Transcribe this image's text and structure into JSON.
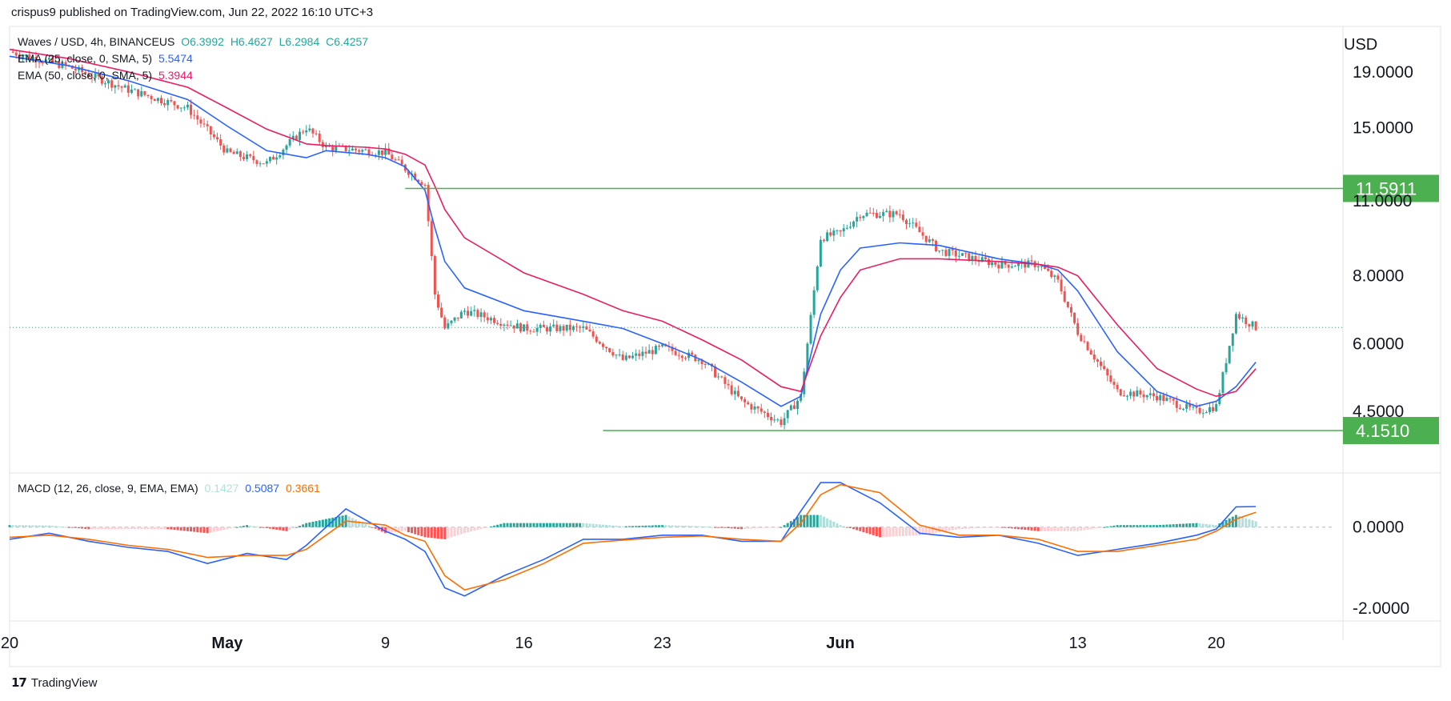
{
  "header": "crispus9 published on TradingView.com, Jun 22, 2022 16:10 UTC+3",
  "footer": {
    "brand": "TradingView",
    "logo_icon": "tradingview-logo-icon"
  },
  "legend": {
    "main": {
      "title": "Waves / USD, 4h, BINANCEUS",
      "O": "O6.3992",
      "H": "H6.4627",
      "L": "L6.2984",
      "C": "C6.4257"
    },
    "ema25": {
      "label": "EMA (25, close, 0, SMA, 5)",
      "value": "5.5474"
    },
    "ema50": {
      "label": "EMA (50, close, 0, SMA, 5)",
      "value": "5.3944"
    },
    "macd": {
      "label": "MACD (12, 26, close, 9, EMA, EMA)",
      "hist": "0.1427",
      "macd": "0.5087",
      "signal": "0.3661"
    }
  },
  "colors": {
    "up": "#26a69a",
    "down": "#ef5350",
    "ema25": "#2962ff",
    "ema50": "#e91e63",
    "level": "#4caf50",
    "macd": "#2962ff",
    "signal": "#ff6d00",
    "hist_up": "#26a69a",
    "hist_up_weak": "#b2dfdb",
    "hist_down": "#ff5252",
    "hist_down_weak": "#ffcdd2"
  },
  "chart_data": [
    {
      "type": "candlestick",
      "title": "Waves / USD, 4h, BINANCEUS",
      "ylabel": "USD",
      "y_scale": "log",
      "ylim": [
        3.6,
        22.5
      ],
      "y_ticks": [
        "19.0000",
        "15.0000",
        "11.0000",
        "8.0000",
        "6.0000",
        "4.5000"
      ],
      "x_ticks": [
        "20",
        "May",
        "9",
        "16",
        "23",
        "Jun",
        "13",
        "20"
      ],
      "x_tick_dates": [
        "2022-04-20",
        "2022-05-01",
        "2022-05-09",
        "2022-05-16",
        "2022-05-23",
        "2022-06-01",
        "2022-06-13",
        "2022-06-20"
      ],
      "xlim": [
        "2022-04-20",
        "2022-06-26"
      ],
      "current_price": 6.4257,
      "horizontal_levels": [
        {
          "value": 11.5911,
          "label": "11.5911",
          "from": "2022-05-10"
        },
        {
          "value": 4.151,
          "label": "4.1510",
          "from": "2022-05-20"
        }
      ],
      "ohlc_anchor_x": [
        "2022-04-20",
        "2022-04-23",
        "2022-04-26",
        "2022-04-29",
        "2022-05-01",
        "2022-05-03",
        "2022-05-05",
        "2022-05-06",
        "2022-05-08",
        "2022-05-09",
        "2022-05-10",
        "2022-05-11",
        "2022-05-11 12:00",
        "2022-05-12",
        "2022-05-13",
        "2022-05-16",
        "2022-05-19",
        "2022-05-21",
        "2022-05-23",
        "2022-05-25",
        "2022-05-27",
        "2022-05-29",
        "2022-05-30",
        "2022-05-31",
        "2022-06-01",
        "2022-06-02",
        "2022-06-04",
        "2022-06-06",
        "2022-06-09",
        "2022-06-11",
        "2022-06-12",
        "2022-06-13",
        "2022-06-15",
        "2022-06-17",
        "2022-06-19",
        "2022-06-20",
        "2022-06-21",
        "2022-06-22"
      ],
      "ohlc_anchor_y": [
        20.7,
        19.4,
        17.6,
        16.3,
        13.5,
        12.9,
        15.0,
        13.8,
        13.6,
        13.5,
        12.6,
        11.8,
        7.4,
        6.4,
        6.9,
        6.4,
        6.4,
        5.6,
        5.9,
        5.6,
        4.7,
        4.3,
        4.8,
        9.4,
        9.6,
        10.4,
        10.4,
        8.9,
        8.4,
        8.4,
        7.8,
        6.3,
        4.9,
        4.8,
        4.5,
        4.6,
        6.8,
        6.4257
      ],
      "series": [
        {
          "name": "EMA (25, close, 0, SMA, 5)",
          "values": [
            20.3,
            19.5,
            18.3,
            16.9,
            15.1,
            13.6,
            13.2,
            13.6,
            13.4,
            13.2,
            12.7,
            11.5,
            9.8,
            8.5,
            7.6,
            6.9,
            6.6,
            6.4,
            6.0,
            5.6,
            5.1,
            4.6,
            4.8,
            6.8,
            8.2,
            9.0,
            9.2,
            9.1,
            8.6,
            8.4,
            8.2,
            7.5,
            5.8,
            4.9,
            4.6,
            4.7,
            5.0,
            5.5474
          ]
        },
        {
          "name": "EMA (50, close, 0, SMA, 5)",
          "values": [
            20.9,
            20.1,
            19.0,
            17.8,
            16.3,
            14.9,
            14.0,
            13.9,
            13.8,
            13.7,
            13.4,
            12.8,
            11.7,
            10.6,
            9.4,
            8.1,
            7.4,
            6.9,
            6.6,
            6.1,
            5.6,
            5.0,
            4.9,
            6.2,
            7.3,
            8.2,
            8.6,
            8.6,
            8.5,
            8.4,
            8.3,
            8.0,
            6.5,
            5.4,
            4.95,
            4.8,
            4.9,
            5.3944
          ]
        }
      ]
    },
    {
      "type": "line",
      "title": "MACD (12, 26, close, 9, EMA, EMA)",
      "ylim": [
        -2.2,
        1.2
      ],
      "y_ticks": [
        "0.0000",
        "-2.0000"
      ],
      "x": [
        "2022-04-20",
        "2022-04-22",
        "2022-04-24",
        "2022-04-26",
        "2022-04-28",
        "2022-04-30",
        "2022-05-02",
        "2022-05-04",
        "2022-05-05",
        "2022-05-07",
        "2022-05-09",
        "2022-05-10",
        "2022-05-11",
        "2022-05-12",
        "2022-05-13",
        "2022-05-15",
        "2022-05-17",
        "2022-05-19",
        "2022-05-21",
        "2022-05-23",
        "2022-05-25",
        "2022-05-27",
        "2022-05-29",
        "2022-05-30",
        "2022-05-31",
        "2022-06-01",
        "2022-06-03",
        "2022-06-05",
        "2022-06-07",
        "2022-06-09",
        "2022-06-11",
        "2022-06-13",
        "2022-06-15",
        "2022-06-17",
        "2022-06-19",
        "2022-06-20",
        "2022-06-21",
        "2022-06-22"
      ],
      "series": [
        {
          "name": "MACD",
          "values": [
            -0.3,
            -0.15,
            -0.35,
            -0.5,
            -0.6,
            -0.9,
            -0.65,
            -0.8,
            -0.45,
            0.45,
            -0.1,
            -0.3,
            -0.6,
            -1.5,
            -1.7,
            -1.2,
            -0.8,
            -0.3,
            -0.3,
            -0.2,
            -0.2,
            -0.35,
            -0.35,
            0.4,
            1.1,
            1.1,
            0.6,
            -0.15,
            -0.25,
            -0.2,
            -0.4,
            -0.7,
            -0.55,
            -0.4,
            -0.2,
            -0.05,
            0.5,
            0.5087
          ]
        },
        {
          "name": "Signal",
          "values": [
            -0.25,
            -0.2,
            -0.3,
            -0.45,
            -0.55,
            -0.75,
            -0.7,
            -0.7,
            -0.55,
            0.15,
            0.05,
            -0.2,
            -0.35,
            -1.2,
            -1.55,
            -1.3,
            -0.9,
            -0.4,
            -0.32,
            -0.25,
            -0.22,
            -0.3,
            -0.35,
            0.1,
            0.8,
            1.05,
            0.85,
            0.05,
            -0.2,
            -0.2,
            -0.3,
            -0.6,
            -0.6,
            -0.45,
            -0.3,
            -0.1,
            0.2,
            0.3661
          ]
        },
        {
          "name": "Histogram",
          "values": [
            0.05,
            0.04,
            -0.05,
            -0.05,
            -0.05,
            -0.15,
            0.05,
            -0.1,
            0.1,
            0.3,
            -0.15,
            -0.1,
            -0.25,
            -0.3,
            -0.15,
            0.1,
            0.1,
            0.1,
            0.02,
            0.05,
            0.02,
            -0.05,
            0.0,
            0.3,
            0.3,
            0.05,
            -0.25,
            -0.2,
            -0.05,
            0.0,
            -0.1,
            -0.1,
            0.05,
            0.05,
            0.1,
            0.05,
            0.3,
            0.1427
          ]
        }
      ]
    }
  ]
}
